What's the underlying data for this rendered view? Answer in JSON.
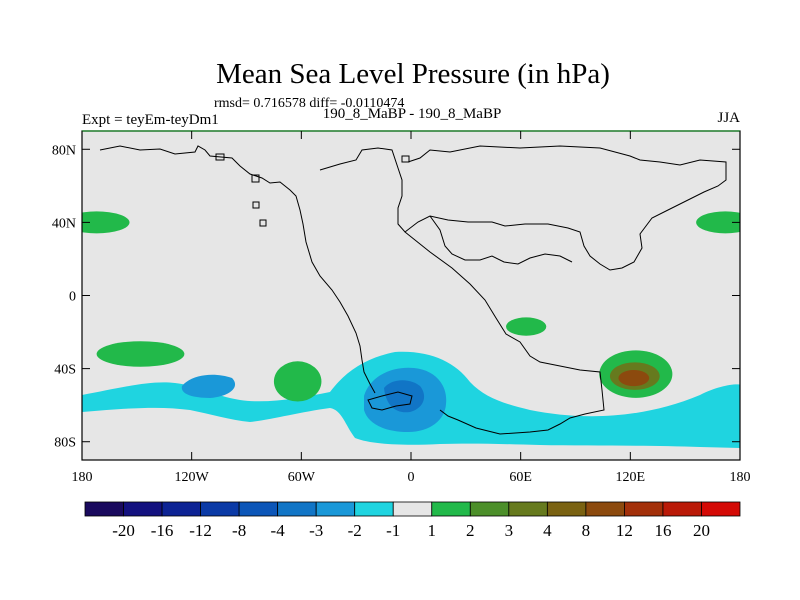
{
  "chart_data": {
    "type": "heatmap",
    "title": "Mean Sea Level Pressure (in hPa)",
    "stats_line": "rmsd= 0.716578 diff= -0.0110474",
    "left_label": "Expt = teyEm-teyDm1",
    "center_label": "190_8_MaBP - 190_8_MaBP",
    "right_label": "JJA",
    "x_axis": {
      "range": [
        -180,
        180
      ],
      "ticks": [
        -180,
        -120,
        -60,
        0,
        60,
        120,
        180
      ],
      "tick_labels": [
        "180",
        "120W",
        "60W",
        "0",
        "60E",
        "120E",
        "180"
      ]
    },
    "y_axis": {
      "range": [
        -90,
        90
      ],
      "ticks": [
        80,
        40,
        0,
        -40,
        -80
      ],
      "tick_labels": [
        "80N",
        "40N",
        "0",
        "40S",
        "80S"
      ]
    },
    "colorbar": {
      "levels": [
        "-20",
        "-16",
        "-12",
        "-8",
        "-4",
        "-3",
        "-2",
        "-1",
        "1",
        "2",
        "3",
        "4",
        "8",
        "12",
        "16",
        "20"
      ],
      "colors": [
        "#1a0a5e",
        "#13117f",
        "#0d2394",
        "#0b3aa6",
        "#0c56b8",
        "#1175c6",
        "#1a98d8",
        "#1fd4e0",
        "#e6e6e6",
        "#22b94a",
        "#4c8f2a",
        "#667a1e",
        "#7a6212",
        "#8c4a0e",
        "#a3300a",
        "#ba1a08",
        "#d40a06"
      ]
    },
    "anomaly_regions": [
      {
        "lon": -172,
        "lat": 40,
        "rlon": 18,
        "rlat": 6,
        "sign": "positive",
        "level": 2
      },
      {
        "lon": 172,
        "lat": 40,
        "rlon": 16,
        "rlat": 6,
        "sign": "positive",
        "level": 2
      },
      {
        "lon": -148,
        "lat": -32,
        "rlon": 24,
        "rlat": 7,
        "sign": "positive",
        "level": 2
      },
      {
        "lon": -62,
        "lat": -47,
        "rlon": 13,
        "rlat": 11,
        "sign": "positive",
        "level": 2
      },
      {
        "lon": 63,
        "lat": -17,
        "rlon": 11,
        "rlat": 5,
        "sign": "positive",
        "level": 2
      },
      {
        "lon": 123,
        "lat": -43,
        "rlon": 20,
        "rlat": 13,
        "sign": "positive",
        "level": 8
      },
      {
        "lon": -112,
        "lat": -49,
        "rlon": 28,
        "rlat": 9,
        "sign": "negative",
        "level": -2
      },
      {
        "lon": 5,
        "lat": -56,
        "rlon": 35,
        "rlat": 20,
        "sign": "negative",
        "level": -3
      }
    ]
  }
}
